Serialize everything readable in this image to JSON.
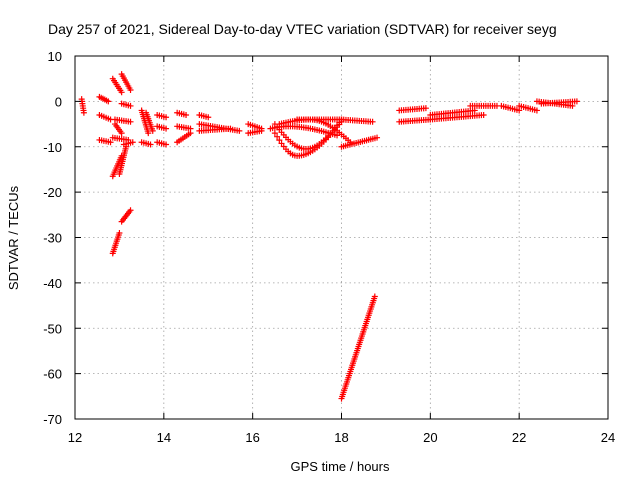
{
  "chart_data": {
    "type": "scatter",
    "title": "Day 257 of 2021, Sidereal Day-to-day VTEC variation (SDTVAR) for receiver seyg",
    "xlabel": "GPS time / hours",
    "ylabel": "SDTVAR / TECUs",
    "xlim": [
      12,
      24
    ],
    "ylim": [
      -70,
      10
    ],
    "xticks": [
      "12",
      "14",
      "16",
      "18",
      "20",
      "22",
      "24"
    ],
    "yticks": [
      "10",
      "0",
      "-10",
      "-20",
      "-30",
      "-40",
      "-50",
      "-60",
      "-70"
    ],
    "grid": true,
    "marker": "+",
    "color": "#ff0000",
    "series": [
      {
        "name": "SDTVAR",
        "segments": [
          {
            "x0": 12.15,
            "x1": 12.2,
            "y0": 0.5,
            "y1": -2.5
          },
          {
            "x0": 12.55,
            "x1": 12.75,
            "y0": 1.0,
            "y1": 0.0
          },
          {
            "x0": 12.55,
            "x1": 12.8,
            "y0": -3.0,
            "y1": -4.0
          },
          {
            "x0": 12.55,
            "x1": 12.8,
            "y0": -8.5,
            "y1": -9.0
          },
          {
            "x0": 12.85,
            "x1": 13.05,
            "y0": 5.0,
            "y1": 2.0
          },
          {
            "x0": 13.05,
            "x1": 13.25,
            "y0": 6.0,
            "y1": 2.5
          },
          {
            "x0": 12.9,
            "x1": 13.25,
            "y0": -4.0,
            "y1": -4.5
          },
          {
            "x0": 12.85,
            "x1": 13.2,
            "y0": -8.0,
            "y1": -8.5
          },
          {
            "x0": 12.9,
            "x1": 13.05,
            "y0": -5.0,
            "y1": -7.0
          },
          {
            "x0": 12.85,
            "x1": 13.05,
            "y0": -16.5,
            "y1": -12.0
          },
          {
            "x0": 13.0,
            "x1": 13.15,
            "y0": -16.0,
            "y1": -10.0
          },
          {
            "x0": 12.85,
            "x1": 13.0,
            "y0": -33.5,
            "y1": -29.0
          },
          {
            "x0": 13.05,
            "x1": 13.25,
            "y0": -26.5,
            "y1": -24.0
          },
          {
            "x0": 13.05,
            "x1": 13.25,
            "y0": -0.5,
            "y1": -1.0
          },
          {
            "x0": 13.1,
            "x1": 13.3,
            "y0": -9.5,
            "y1": -9.0
          },
          {
            "x0": 13.5,
            "x1": 13.65,
            "y0": -2.0,
            "y1": -7.0
          },
          {
            "x0": 13.6,
            "x1": 13.75,
            "y0": -2.5,
            "y1": -6.5
          },
          {
            "x0": 13.5,
            "x1": 13.7,
            "y0": -9.0,
            "y1": -9.5
          },
          {
            "x0": 13.85,
            "x1": 14.05,
            "y0": -3.0,
            "y1": -3.5
          },
          {
            "x0": 13.85,
            "x1": 14.05,
            "y0": -5.5,
            "y1": -6.0
          },
          {
            "x0": 13.85,
            "x1": 14.05,
            "y0": -9.0,
            "y1": -9.5
          },
          {
            "x0": 14.3,
            "x1": 14.5,
            "y0": -2.5,
            "y1": -3.0
          },
          {
            "x0": 14.3,
            "x1": 14.6,
            "y0": -9.0,
            "y1": -7.0
          },
          {
            "x0": 14.3,
            "x1": 14.6,
            "y0": -5.5,
            "y1": -6.0
          },
          {
            "x0": 14.8,
            "x1": 15.0,
            "y0": -3.0,
            "y1": -3.5
          },
          {
            "x0": 14.8,
            "x1": 15.7,
            "y0": -5.0,
            "y1": -6.5
          },
          {
            "x0": 14.8,
            "x1": 15.5,
            "y0": -6.5,
            "y1": -6.0
          },
          {
            "x0": 15.9,
            "x1": 16.2,
            "y0": -5.0,
            "y1": -6.0
          },
          {
            "x0": 15.9,
            "x1": 16.2,
            "y0": -7.0,
            "y1": -6.5
          },
          {
            "x0": 18.0,
            "x1": 18.75,
            "y0": -65.5,
            "y1": -43.0
          },
          {
            "x0": 18.0,
            "x1": 18.8,
            "y0": -10.0,
            "y1": -8.0
          },
          {
            "x0": 17.0,
            "x1": 18.0,
            "y0": -4.0,
            "y1": -4.0
          },
          {
            "x0": 18.0,
            "x1": 18.7,
            "y0": -4.0,
            "y1": -4.5
          },
          {
            "x0": 19.3,
            "x1": 19.9,
            "y0": -2.0,
            "y1": -1.5
          },
          {
            "x0": 19.3,
            "x1": 20.0,
            "y0": -4.5,
            "y1": -4.0
          },
          {
            "x0": 20.0,
            "x1": 21.0,
            "y0": -3.0,
            "y1": -2.0
          },
          {
            "x0": 20.0,
            "x1": 21.2,
            "y0": -4.0,
            "y1": -3.0
          },
          {
            "x0": 20.9,
            "x1": 21.5,
            "y0": -1.0,
            "y1": -1.0
          },
          {
            "x0": 21.6,
            "x1": 22.0,
            "y0": -1.0,
            "y1": -2.0
          },
          {
            "x0": 22.0,
            "x1": 22.4,
            "y0": -1.0,
            "y1": -2.0
          },
          {
            "x0": 22.4,
            "x1": 23.2,
            "y0": 0.0,
            "y1": -1.0
          },
          {
            "x0": 22.5,
            "x1": 23.3,
            "y0": -0.5,
            "y1": 0.0
          }
        ],
        "arcs": [
          {
            "x0": 16.5,
            "x1": 18.0,
            "xmin": 17.0,
            "ymin": -12.0,
            "y0": -7.0,
            "y1": -4.5
          },
          {
            "x0": 16.5,
            "x1": 18.0,
            "xmin": 17.2,
            "ymin": -10.5,
            "y0": -5.0,
            "y1": -4.0
          },
          {
            "x0": 16.6,
            "x1": 18.2,
            "xmin": 17.3,
            "ymin": -4.0,
            "y0": -5.0,
            "y1": -9.0
          },
          {
            "x0": 16.4,
            "x1": 17.9,
            "xmin": 16.8,
            "ymin": -5.5,
            "y0": -6.0,
            "y1": -7.5
          }
        ]
      }
    ]
  }
}
